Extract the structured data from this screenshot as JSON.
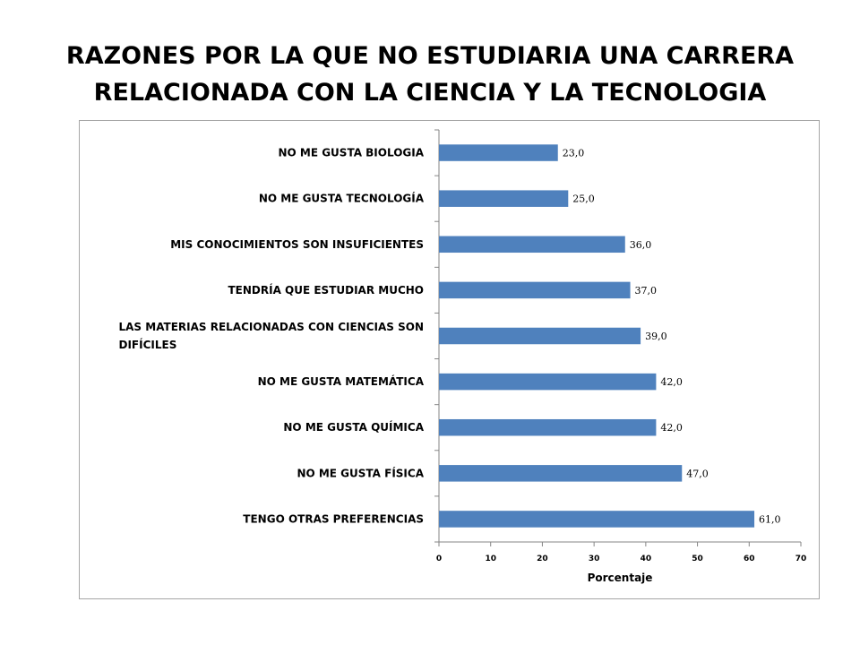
{
  "slide": {
    "title_lines": [
      "RAZONES POR LA QUE NO ESTUDIARIA UNA CARRERA",
      "RELACIONADA CON LA CIENCIA Y LA TECNOLOGIA"
    ]
  },
  "chart_data": {
    "type": "bar",
    "orientation": "horizontal",
    "categories": [
      "NO ME GUSTA BIOLOGIA",
      "NO ME GUSTA TECNOLOGÍA",
      "MIS CONOCIMIENTOS SON INSUFICIENTES",
      "TENDRÍA QUE ESTUDIAR MUCHO",
      "LAS MATERIAS RELACIONADAS CON CIENCIAS SON DIFÍCILES",
      "NO ME GUSTA MATEMÁTICA",
      "NO ME GUSTA QUÍMICA",
      "NO ME GUSTA FÍSICA",
      "TENGO OTRAS PREFERENCIAS"
    ],
    "values": [
      23,
      25,
      36,
      37,
      39,
      42,
      42,
      47,
      61
    ],
    "value_labels": [
      "23,0",
      "25,0",
      "36,0",
      "37,0",
      "39,0",
      "42,0",
      "42,0",
      "47,0",
      "61,0"
    ],
    "xlabel": "Porcentaje",
    "xlim": [
      0,
      70
    ],
    "xticks": [
      0,
      10,
      20,
      30,
      40,
      50,
      60,
      70
    ],
    "bar_color": "#4F81BD",
    "grid": false,
    "legend": "none"
  }
}
